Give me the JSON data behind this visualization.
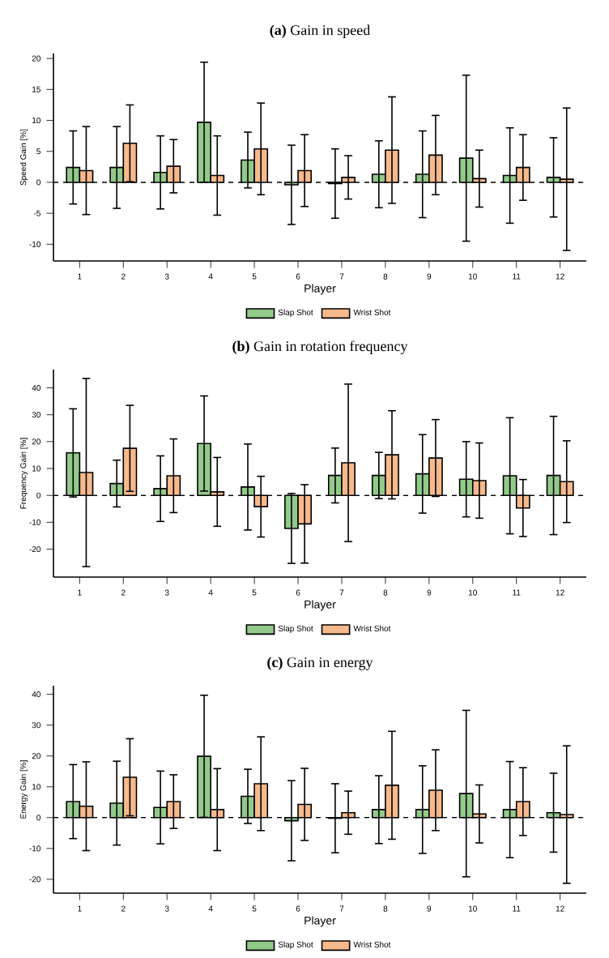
{
  "chart_data": [
    {
      "type": "bar",
      "title": "**(a)** Gain in speed",
      "xlabel": "Player",
      "ylabel": "Speed Gain [%]",
      "categories": [
        "1",
        "2",
        "3",
        "4",
        "5",
        "6",
        "7",
        "8",
        "9",
        "10",
        "11",
        "12"
      ],
      "series": [
        {
          "name": "Slap Shot",
          "color": "#93c98b",
          "values": [
            2.4,
            2.4,
            1.6,
            9.7,
            3.6,
            -0.4,
            -0.2,
            1.3,
            1.3,
            3.9,
            1.1,
            0.8
          ],
          "errors": [
            5.9,
            6.6,
            5.9,
            9.7,
            4.5,
            6.4,
            5.6,
            5.4,
            7.0,
            13.4,
            7.7,
            6.4
          ]
        },
        {
          "name": "Wrist Shot",
          "color": "#f6b98c",
          "values": [
            1.9,
            6.3,
            2.6,
            1.1,
            5.4,
            1.9,
            0.8,
            5.2,
            4.4,
            0.6,
            2.4,
            0.5
          ],
          "errors": [
            7.1,
            6.2,
            4.3,
            6.4,
            7.4,
            5.8,
            3.5,
            8.6,
            6.4,
            4.6,
            5.3,
            11.5
          ]
        }
      ],
      "ylim": [
        -12.7,
        20.8
      ],
      "yticks": [
        -10,
        -5,
        0,
        5,
        10,
        15,
        20
      ],
      "legend": "bottom",
      "ref_lines": [
        {
          "axis": "y",
          "value": 0,
          "line_style": "dashed",
          "color": "#000000"
        }
      ]
    },
    {
      "type": "bar",
      "title": "**(b)** Gain in rotation frequency",
      "xlabel": "Player",
      "ylabel": "Frequency Gain [%]",
      "categories": [
        "1",
        "2",
        "3",
        "4",
        "5",
        "6",
        "7",
        "8",
        "9",
        "10",
        "11",
        "12"
      ],
      "series": [
        {
          "name": "Slap Shot",
          "color": "#93c98b",
          "values": [
            15.8,
            4.4,
            2.5,
            19.3,
            3.1,
            -12.3,
            7.4,
            7.4,
            8.0,
            6.0,
            7.3,
            7.4
          ],
          "errors": [
            16.4,
            8.7,
            12.2,
            17.7,
            16.0,
            13.0,
            10.2,
            8.6,
            14.6,
            14.0,
            21.6,
            22.0
          ]
        },
        {
          "name": "Wrist Shot",
          "color": "#f6b98c",
          "values": [
            8.5,
            17.5,
            7.3,
            1.3,
            -4.2,
            -10.6,
            12.1,
            15.1,
            13.9,
            5.5,
            -4.7,
            5.1
          ],
          "errors": [
            35.0,
            16.0,
            13.7,
            12.8,
            11.3,
            14.6,
            29.3,
            16.4,
            14.3,
            14.0,
            10.6,
            15.2
          ]
        }
      ],
      "ylim": [
        -30.4,
        46.8
      ],
      "yticks": [
        -20,
        -10,
        0,
        10,
        20,
        30,
        40
      ],
      "legend": "bottom",
      "ref_lines": [
        {
          "axis": "y",
          "value": 0,
          "line_style": "dashed",
          "color": "#000000"
        }
      ]
    },
    {
      "type": "bar",
      "title": "**(c)** Gain in energy",
      "xlabel": "Player",
      "ylabel": "Energy Gain [%]",
      "categories": [
        "1",
        "2",
        "3",
        "4",
        "5",
        "6",
        "7",
        "8",
        "9",
        "10",
        "11",
        "12"
      ],
      "series": [
        {
          "name": "Slap Shot",
          "color": "#93c98b",
          "values": [
            5.2,
            4.7,
            3.3,
            19.9,
            6.9,
            -1.0,
            -0.2,
            2.6,
            2.6,
            7.8,
            2.6,
            1.6
          ],
          "errors": [
            12.0,
            13.6,
            11.8,
            19.8,
            8.8,
            13.0,
            11.2,
            11.0,
            14.2,
            27.0,
            15.6,
            12.8
          ]
        },
        {
          "name": "Wrist Shot",
          "color": "#f6b98c",
          "values": [
            3.7,
            13.1,
            5.2,
            2.6,
            11.0,
            4.3,
            1.6,
            10.5,
            8.9,
            1.2,
            5.2,
            1.0
          ],
          "errors": [
            14.4,
            12.5,
            8.7,
            13.3,
            15.2,
            11.7,
            7.0,
            17.5,
            13.1,
            9.4,
            11.0,
            22.3
          ]
        }
      ],
      "ylim": [
        -24.5,
        42.8
      ],
      "yticks": [
        -20,
        -10,
        0,
        10,
        20,
        30,
        40
      ],
      "legend": "bottom",
      "ref_lines": [
        {
          "axis": "y",
          "value": 0,
          "line_style": "dashed",
          "color": "#000000"
        }
      ]
    }
  ]
}
